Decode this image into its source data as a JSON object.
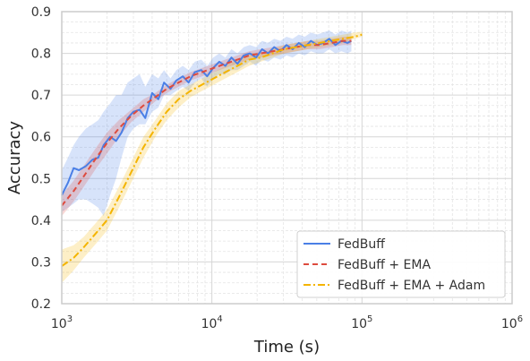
{
  "chart_data": {
    "type": "line",
    "title": "",
    "xlabel": "Time (s)",
    "ylabel": "Accuracy",
    "xscale": "log",
    "xlim": [
      1000,
      1000000
    ],
    "ylim": [
      0.2,
      0.9
    ],
    "x_ticks": [
      {
        "value": 1000,
        "base": "10",
        "exp": "3"
      },
      {
        "value": 10000,
        "base": "10",
        "exp": "4"
      },
      {
        "value": 100000,
        "base": "10",
        "exp": "5"
      },
      {
        "value": 1000000,
        "base": "10",
        "exp": "6"
      }
    ],
    "y_ticks": [
      "0.2",
      "0.3",
      "0.4",
      "0.5",
      "0.6",
      "0.7",
      "0.8",
      "0.9"
    ],
    "grid": true,
    "legend_position": "lower-right",
    "series": [
      {
        "name": "FedBuff",
        "color": "#4a7fe6",
        "dash": "solid",
        "x": [
          1000,
          1100,
          1200,
          1300,
          1450,
          1600,
          1750,
          1900,
          2100,
          2300,
          2500,
          2750,
          3000,
          3300,
          3600,
          4000,
          4400,
          4800,
          5300,
          5800,
          6400,
          7000,
          7700,
          8500,
          9300,
          10200,
          11200,
          12300,
          13500,
          14800,
          16300,
          17900,
          19700,
          21600,
          23700,
          26000,
          28600,
          31400,
          34500,
          37900,
          41600,
          45700,
          50200,
          55100,
          60500,
          66500,
          73000,
          80000,
          85000
        ],
        "y": [
          0.46,
          0.49,
          0.525,
          0.52,
          0.53,
          0.545,
          0.55,
          0.58,
          0.6,
          0.59,
          0.61,
          0.645,
          0.66,
          0.665,
          0.645,
          0.705,
          0.69,
          0.73,
          0.715,
          0.735,
          0.745,
          0.73,
          0.755,
          0.76,
          0.745,
          0.765,
          0.78,
          0.77,
          0.79,
          0.775,
          0.795,
          0.8,
          0.79,
          0.81,
          0.8,
          0.815,
          0.805,
          0.82,
          0.81,
          0.825,
          0.815,
          0.83,
          0.82,
          0.825,
          0.835,
          0.82,
          0.83,
          0.825,
          0.83
        ],
        "band_lower": [
          0.42,
          0.43,
          0.44,
          0.45,
          0.45,
          0.44,
          0.43,
          0.41,
          0.46,
          0.5,
          0.55,
          0.6,
          0.62,
          0.63,
          0.63,
          0.66,
          0.67,
          0.7,
          0.7,
          0.71,
          0.72,
          0.71,
          0.73,
          0.74,
          0.72,
          0.74,
          0.75,
          0.75,
          0.76,
          0.76,
          0.77,
          0.78,
          0.77,
          0.785,
          0.78,
          0.79,
          0.785,
          0.795,
          0.79,
          0.8,
          0.795,
          0.805,
          0.8,
          0.8,
          0.81,
          0.8,
          0.805,
          0.8,
          0.805
        ],
        "band_upper": [
          0.52,
          0.55,
          0.58,
          0.6,
          0.62,
          0.63,
          0.64,
          0.66,
          0.68,
          0.7,
          0.7,
          0.73,
          0.74,
          0.75,
          0.72,
          0.75,
          0.74,
          0.76,
          0.74,
          0.76,
          0.77,
          0.76,
          0.78,
          0.785,
          0.77,
          0.79,
          0.8,
          0.79,
          0.81,
          0.8,
          0.815,
          0.82,
          0.815,
          0.83,
          0.825,
          0.835,
          0.83,
          0.84,
          0.835,
          0.845,
          0.84,
          0.85,
          0.845,
          0.85,
          0.855,
          0.845,
          0.855,
          0.85,
          0.855
        ]
      },
      {
        "name": "FedBuff + EMA",
        "color": "#dd4b3e",
        "dash": "dashed",
        "x": [
          1000,
          1200,
          1400,
          1700,
          2000,
          2400,
          2900,
          3500,
          4200,
          5000,
          6000,
          7200,
          8600,
          10300,
          12300,
          14800,
          17700,
          21200,
          25400,
          30400,
          36400,
          43600,
          52200,
          62500,
          74900,
          85000
        ],
        "y": [
          0.435,
          0.47,
          0.505,
          0.55,
          0.585,
          0.62,
          0.65,
          0.675,
          0.695,
          0.715,
          0.73,
          0.745,
          0.755,
          0.765,
          0.775,
          0.785,
          0.795,
          0.8,
          0.805,
          0.81,
          0.815,
          0.82,
          0.82,
          0.825,
          0.83,
          0.83
        ],
        "band_lower": [
          0.41,
          0.445,
          0.48,
          0.525,
          0.56,
          0.6,
          0.635,
          0.66,
          0.685,
          0.705,
          0.72,
          0.735,
          0.745,
          0.755,
          0.765,
          0.775,
          0.785,
          0.79,
          0.795,
          0.8,
          0.805,
          0.81,
          0.81,
          0.815,
          0.82,
          0.82
        ],
        "band_upper": [
          0.46,
          0.495,
          0.53,
          0.575,
          0.61,
          0.64,
          0.665,
          0.69,
          0.705,
          0.725,
          0.74,
          0.755,
          0.765,
          0.775,
          0.785,
          0.795,
          0.805,
          0.81,
          0.815,
          0.82,
          0.825,
          0.83,
          0.83,
          0.835,
          0.84,
          0.84
        ]
      },
      {
        "name": "FedBuff + EMA + Adam",
        "color": "#f4b400",
        "dash": "dashdot",
        "x": [
          1000,
          1200,
          1400,
          1700,
          2000,
          2400,
          2900,
          3500,
          4200,
          5000,
          6000,
          7200,
          8600,
          10300,
          12300,
          14800,
          17700,
          21200,
          25400,
          30400,
          36400,
          43600,
          52200,
          62500,
          74900,
          89700,
          100000
        ],
        "y": [
          0.29,
          0.31,
          0.335,
          0.37,
          0.4,
          0.455,
          0.515,
          0.575,
          0.62,
          0.66,
          0.69,
          0.71,
          0.725,
          0.74,
          0.755,
          0.77,
          0.785,
          0.79,
          0.8,
          0.81,
          0.815,
          0.82,
          0.825,
          0.83,
          0.835,
          0.84,
          0.845
        ],
        "band_lower": [
          0.25,
          0.28,
          0.31,
          0.345,
          0.375,
          0.43,
          0.49,
          0.55,
          0.6,
          0.64,
          0.67,
          0.695,
          0.71,
          0.725,
          0.74,
          0.755,
          0.77,
          0.78,
          0.79,
          0.8,
          0.805,
          0.81,
          0.815,
          0.82,
          0.825,
          0.835,
          0.84
        ],
        "band_upper": [
          0.33,
          0.34,
          0.36,
          0.395,
          0.425,
          0.48,
          0.54,
          0.6,
          0.64,
          0.68,
          0.71,
          0.725,
          0.74,
          0.755,
          0.77,
          0.785,
          0.8,
          0.8,
          0.81,
          0.82,
          0.825,
          0.83,
          0.835,
          0.84,
          0.845,
          0.85,
          0.852
        ]
      }
    ]
  }
}
